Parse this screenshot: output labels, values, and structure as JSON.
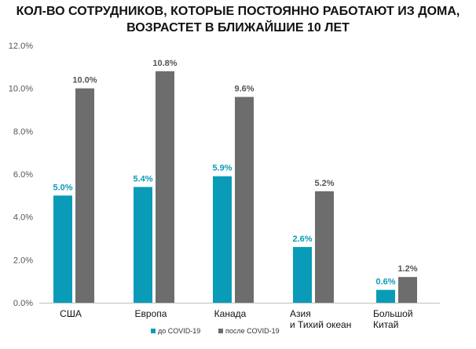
{
  "title_lines": [
    "КОЛ-ВО СОТРУДНИКОВ, КОТОРЫЕ ПОСТОЯННО РАБОТАЮТ ИЗ ДОМА,",
    "ВОЗРАСТЕТ В БЛИЖАЙШИЕ 10 ЛЕТ"
  ],
  "chart_data": {
    "type": "bar",
    "categories": [
      [
        "США"
      ],
      [
        "Европа"
      ],
      [
        "Канада"
      ],
      [
        "Азия",
        "и Тихий океан"
      ],
      [
        "Большой",
        "Китай"
      ]
    ],
    "series": [
      {
        "name": "до COVID-19",
        "color": "#0a9bb8",
        "values": [
          5.0,
          5.4,
          5.9,
          2.6,
          0.6
        ],
        "labels": [
          "5.0%",
          "5.4%",
          "5.9%",
          "2.6%",
          "0.6%"
        ]
      },
      {
        "name": "после COVID-19",
        "color": "#6d6d6d",
        "values": [
          10.0,
          10.8,
          9.6,
          5.2,
          1.2
        ],
        "labels": [
          "10.0%",
          "10.8%",
          "9.6%",
          "5.2%",
          "1.2%"
        ]
      }
    ],
    "ylim": [
      0,
      12
    ],
    "yticks": [
      "0.0%",
      "2.0%",
      "4.0%",
      "6.0%",
      "8.0%",
      "10.0%",
      "12.0%"
    ],
    "grid": false,
    "legend_position": "bottom-center"
  }
}
